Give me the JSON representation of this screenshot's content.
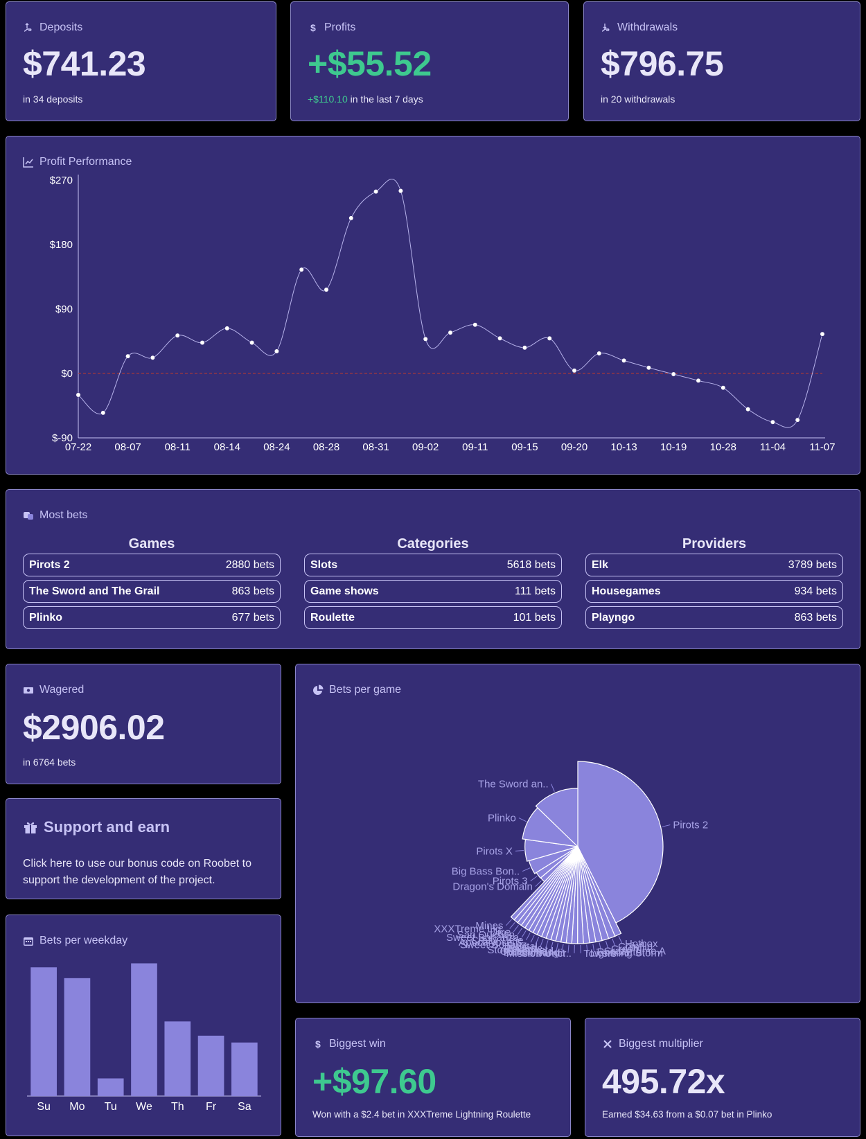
{
  "deposits": {
    "title": "Deposits",
    "value": "$741.23",
    "sub": "in 34 deposits"
  },
  "profits": {
    "title": "Profits",
    "value": "+$55.52",
    "sub_green": "+$110.10",
    "sub_rest": " in the last 7 days"
  },
  "withdrawals": {
    "title": "Withdrawals",
    "value": "$796.75",
    "sub": "in 20 withdrawals"
  },
  "profit_performance": {
    "title": "Profit Performance"
  },
  "most_bets": {
    "title": "Most bets",
    "games": {
      "heading": "Games",
      "items": [
        {
          "name": "Pirots 2",
          "value": "2880 bets"
        },
        {
          "name": "The Sword and The Grail",
          "value": "863 bets"
        },
        {
          "name": "Plinko",
          "value": "677 bets"
        }
      ]
    },
    "categories": {
      "heading": "Categories",
      "items": [
        {
          "name": "Slots",
          "value": "5618 bets"
        },
        {
          "name": "Game shows",
          "value": "111 bets"
        },
        {
          "name": "Roulette",
          "value": "101 bets"
        }
      ]
    },
    "providers": {
      "heading": "Providers",
      "items": [
        {
          "name": "Elk",
          "value": "3789 bets"
        },
        {
          "name": "Housegames",
          "value": "934 bets"
        },
        {
          "name": "Playngo",
          "value": "863 bets"
        }
      ]
    }
  },
  "wagered": {
    "title": "Wagered",
    "value": "$2906.02",
    "sub": "in 6764 bets"
  },
  "support": {
    "title": "Support and earn",
    "text": "Click here to use our bonus code on Roobet to support the development of the project."
  },
  "bets_per_weekday": {
    "title": "Bets per weekday"
  },
  "bets_per_game": {
    "title": "Bets per game"
  },
  "biggest_win": {
    "title": "Biggest win",
    "value": "+$97.60",
    "sub": "Won with a $2.4 bet in XXXTreme Lightning Roulette"
  },
  "biggest_multiplier": {
    "title": "Biggest multiplier",
    "value": "495.72x",
    "sub": "Earned $34.63 from a $0.07 bet in Plinko"
  },
  "colors": {
    "card": "#352d75",
    "border": "#8a86c8",
    "accent": "#8a84dc",
    "green": "#3ec98f",
    "zero_line": "#c0392b"
  },
  "chart_data": [
    {
      "type": "line",
      "x_tick_labels": [
        "07-22",
        "08-07",
        "08-11",
        "08-14",
        "08-24",
        "08-28",
        "08-31",
        "09-02",
        "09-11",
        "09-15",
        "09-20",
        "10-13",
        "10-19",
        "10-28",
        "11-04",
        "11-07"
      ],
      "y_tick_labels": [
        "$-90",
        "$0",
        "$90",
        "$180",
        "$270"
      ],
      "ylim": [
        -90,
        270
      ],
      "values": [
        -30,
        -55,
        24,
        22,
        53,
        43,
        63,
        43,
        31,
        145,
        117,
        217,
        254,
        255,
        48,
        57,
        68,
        49,
        36,
        49,
        4,
        28,
        18,
        8,
        -1,
        -10,
        -20,
        -50,
        -68,
        -65,
        55
      ],
      "zero_line": true
    },
    {
      "type": "bar",
      "categories": [
        "Su",
        "Mo",
        "Tu",
        "We",
        "Th",
        "Fr",
        "Sa"
      ],
      "values": [
        1130,
        1035,
        155,
        1165,
        655,
        530,
        470
      ],
      "ylim": [
        0,
        1180
      ]
    },
    {
      "type": "pie",
      "labels": [
        "Pirots 2",
        "Hotbox",
        "Coinflip",
        "Crash",
        "Crazy Time A",
        "Rooolette",
        "Lightning Storm",
        "Towers",
        "Mission Uncr..",
        "Le Bandit",
        "Buffalo King",
        "Outsourced",
        "Stock Market",
        "Roulette",
        "Mental",
        "Sweet Bonanz..",
        "Apocalypse S..",
        "Crazy Time",
        "Sweet Bonanza",
        "San Quentin",
        "Dice",
        "XXXTreme Lig..",
        "Mines",
        "Dragon's Domain",
        "Pirots 3",
        "Big Bass Bon..",
        "Pirots X",
        "Plinko",
        "The Sword an.."
      ],
      "values": [
        2880,
        75,
        75,
        75,
        72,
        70,
        68,
        66,
        64,
        62,
        60,
        58,
        56,
        55,
        54,
        53,
        52,
        52,
        51,
        50,
        50,
        49,
        49,
        120,
        150,
        300,
        450,
        677,
        863
      ]
    }
  ]
}
